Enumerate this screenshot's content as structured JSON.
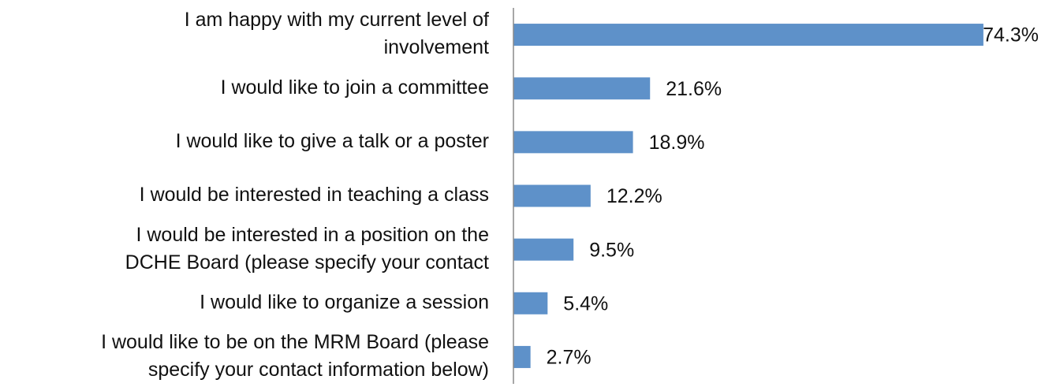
{
  "chart_data": {
    "type": "bar",
    "orientation": "horizontal",
    "categories": [
      [
        "I am happy with my current level of",
        "involvement"
      ],
      [
        "I would like to join a committee"
      ],
      [
        "I would like to give a talk or a poster"
      ],
      [
        "I would be interested in teaching a class"
      ],
      [
        "I would be interested in a position on the",
        "DCHE Board (please specify your contact"
      ],
      [
        "I would like to organize a session"
      ],
      [
        "I would like to be on the MRM Board (please",
        "specify your contact information below)"
      ]
    ],
    "values": [
      74.3,
      21.6,
      18.9,
      12.2,
      9.5,
      5.4,
      2.7
    ],
    "value_labels": [
      "74.3%",
      "21.6%",
      "18.9%",
      "12.2%",
      "9.5%",
      "5.4%",
      "2.7%"
    ],
    "color": "#5e91c9",
    "xlim": [
      0,
      80
    ]
  }
}
